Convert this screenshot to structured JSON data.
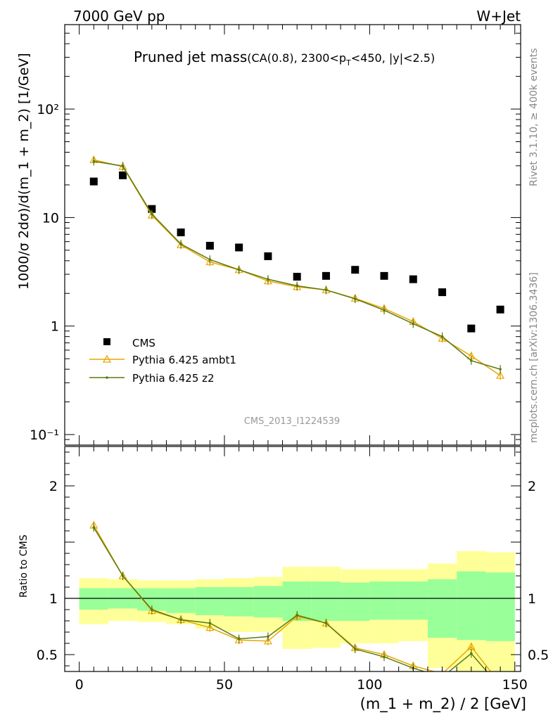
{
  "header": {
    "left": "7000 GeV pp",
    "right": "W+Jet"
  },
  "title": {
    "main": "Pruned jet mass",
    "sub_a": "(CA(0.8), 2300<p",
    "sub_sub": "T",
    "sub_b": "<450, |y|<2.5)"
  },
  "side_labels": {
    "rivet": "Rivet 3.1.10, ≥ 400k events",
    "mcplots": "mcplots.cern.ch [arXiv:1306.3436]"
  },
  "analysis_id": "CMS_2013_I1224539",
  "chart_data": [
    {
      "type": "scatter",
      "panel": "main",
      "ylabel": "1000/σ 2dσ)/d(m_1 + m_2) [1/GeV]",
      "yscale": "log",
      "ylim": [
        0.08,
        600
      ],
      "xlim": [
        -5,
        152
      ],
      "y_ticks": [
        {
          "value": 0.1,
          "label": "10⁻¹"
        },
        {
          "value": 1,
          "label": "1"
        },
        {
          "value": 10,
          "label": "10"
        },
        {
          "value": 100,
          "label": "10²"
        }
      ],
      "legend_position": "middle-left",
      "series": [
        {
          "name": "CMS",
          "color": "#000000",
          "marker": "square",
          "x": [
            5,
            15,
            25,
            35,
            45,
            55,
            65,
            75,
            85,
            95,
            105,
            115,
            125,
            135,
            145
          ],
          "y": [
            21.5,
            24.5,
            12.0,
            7.3,
            5.5,
            5.3,
            4.4,
            2.85,
            2.9,
            3.3,
            2.9,
            2.7,
            2.05,
            0.95,
            1.42
          ]
        },
        {
          "name": "Pythia 6.425 ambt1",
          "color": "#e8a700",
          "marker": "triangle",
          "x": [
            5,
            15,
            25,
            35,
            45,
            55,
            65,
            75,
            85,
            95,
            105,
            115,
            125,
            135,
            145
          ],
          "y": [
            34,
            29.5,
            10.5,
            5.6,
            3.9,
            3.3,
            2.6,
            2.3,
            2.15,
            1.8,
            1.45,
            1.1,
            0.77,
            0.53,
            0.35
          ]
        },
        {
          "name": "Pythia 6.425 z2",
          "color": "#5a7a10",
          "marker": "dot",
          "x": [
            5,
            15,
            25,
            35,
            45,
            55,
            65,
            75,
            85,
            95,
            105,
            115,
            125,
            135,
            145
          ],
          "y": [
            33,
            29.8,
            10.8,
            5.7,
            4.1,
            3.3,
            2.7,
            2.35,
            2.15,
            1.78,
            1.4,
            1.05,
            0.8,
            0.48,
            0.4
          ]
        }
      ]
    },
    {
      "type": "line",
      "panel": "ratio",
      "ylabel": "Ratio to CMS",
      "xlabel": "(m_1 + m_2) / 2 [GeV]",
      "ylim": [
        0.35,
        2.35
      ],
      "xlim": [
        -5,
        152
      ],
      "x_ticks": [
        0,
        50,
        100,
        150
      ],
      "y_ticks": [
        0.5,
        1,
        2
      ],
      "bins": [
        0,
        10,
        20,
        30,
        40,
        50,
        60,
        70,
        80,
        90,
        100,
        110,
        120,
        130,
        140,
        150
      ],
      "band_outer_hi": [
        1.18,
        1.17,
        1.16,
        1.16,
        1.17,
        1.18,
        1.19,
        1.28,
        1.28,
        1.26,
        1.26,
        1.26,
        1.31,
        1.42,
        1.41
      ],
      "band_outer_lo": [
        0.77,
        0.8,
        0.79,
        0.77,
        0.73,
        0.7,
        0.7,
        0.55,
        0.56,
        0.6,
        0.6,
        0.62,
        0.38,
        0.31,
        0.25
      ],
      "band_inner_hi": [
        1.09,
        1.09,
        1.09,
        1.09,
        1.1,
        1.1,
        1.11,
        1.15,
        1.15,
        1.14,
        1.15,
        1.15,
        1.17,
        1.24,
        1.23
      ],
      "band_inner_lo": [
        0.9,
        0.91,
        0.89,
        0.87,
        0.85,
        0.84,
        0.83,
        0.8,
        0.8,
        0.8,
        0.81,
        0.81,
        0.65,
        0.63,
        0.62
      ],
      "series": [
        {
          "name": "Pythia 6.425 ambt1",
          "color": "#e8a700",
          "x": [
            5,
            15,
            25,
            35,
            45,
            55,
            65,
            75,
            85,
            95,
            105,
            115,
            125,
            135,
            145
          ],
          "y": [
            1.65,
            1.2,
            0.89,
            0.81,
            0.74,
            0.63,
            0.62,
            0.84,
            0.78,
            0.56,
            0.5,
            0.4,
            0.33,
            0.57,
            0.24
          ]
        },
        {
          "name": "Pythia 6.425 z2",
          "color": "#5a7a10",
          "x": [
            5,
            15,
            25,
            35,
            45,
            55,
            65,
            75,
            85,
            95,
            105,
            115,
            125,
            135,
            145
          ],
          "y": [
            1.63,
            1.2,
            0.9,
            0.81,
            0.78,
            0.64,
            0.66,
            0.85,
            0.78,
            0.55,
            0.48,
            0.38,
            0.3,
            0.51,
            0.21
          ]
        }
      ]
    }
  ]
}
